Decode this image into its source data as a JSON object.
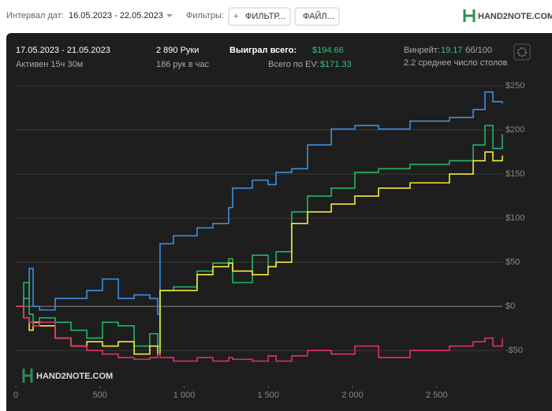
{
  "toolbar": {
    "date_label": "Интервал дат:",
    "date_range": "16.05.2023 - 22.05.2023",
    "filters_label": "Фильтры:",
    "filter_button": "ФИЛЬТР...",
    "file_button": "ФАЙЛ...",
    "logo": "HAND2NOTE.COM"
  },
  "summary": {
    "period": "17.05.2023 - 21.05.2023",
    "active": "Активен 15ч 30м",
    "hands": "2 890 Руки",
    "hands_per_hour": "186 рук в час",
    "won_label": "Выиграл всего:",
    "won_value": "$194.66",
    "ev_label": "Всего по EV:",
    "ev_value": "$171.33",
    "winrate_label": "Винрейт:",
    "winrate_value": "19.17",
    "winrate_unit": "бб/100",
    "tables": "2.2 среднее число столов"
  },
  "chart_data": {
    "type": "line",
    "watermark": "HAND2NOTE.COM",
    "x": [
      0,
      47,
      80,
      103,
      141,
      234,
      328,
      422,
      515,
      609,
      703,
      796,
      843,
      857,
      937,
      1077,
      1171,
      1265,
      1288,
      1405,
      1499,
      1546,
      1639,
      1733,
      1874,
      2014,
      2155,
      2342,
      2576,
      2717,
      2787,
      2834,
      2890
    ],
    "series": [
      {
        "color": "#3d8fe0",
        "values": [
          0,
          9,
          43,
          0,
          -4,
          9,
          9,
          18,
          31,
          9,
          13,
          9,
          -9,
          71,
          80,
          89,
          94,
          112,
          134,
          143,
          138,
          152,
          156,
          183,
          201,
          205,
          201,
          210,
          214,
          223,
          243,
          232,
          230
        ]
      },
      {
        "color": "#22b566",
        "values": [
          0,
          27,
          -9,
          -18,
          -13,
          -18,
          -27,
          -36,
          -18,
          -22,
          -45,
          -31,
          -45,
          18,
          22,
          40,
          49,
          54,
          27,
          58,
          45,
          62,
          107,
          125,
          134,
          152,
          156,
          161,
          165,
          183,
          205,
          179,
          195
        ]
      },
      {
        "color": "#f2ea3a",
        "values": [
          0,
          -13,
          -27,
          -18,
          -22,
          -36,
          -45,
          -40,
          -45,
          -40,
          -54,
          -45,
          -54,
          18,
          18,
          36,
          45,
          49,
          40,
          36,
          45,
          50,
          94,
          107,
          116,
          125,
          134,
          140,
          150,
          165,
          175,
          165,
          171
        ]
      },
      {
        "color": "#e0306a",
        "values": [
          0,
          -13,
          -18,
          -22,
          -18,
          -36,
          -45,
          -50,
          -54,
          -58,
          -60,
          -58,
          -54,
          -58,
          -62,
          -58,
          -62,
          -58,
          -60,
          -62,
          -56,
          -62,
          -56,
          -50,
          -54,
          -45,
          -58,
          -50,
          -45,
          -40,
          -36,
          -45,
          -36
        ]
      }
    ],
    "xlim": [
      0,
      2890
    ],
    "ylim": [
      -90,
      258
    ],
    "xticks": [
      0,
      500,
      {
        "value": 1000,
        "label": "1 000"
      },
      {
        "value": 1500,
        "label": "1 500"
      },
      {
        "value": 2000,
        "label": "2 000"
      },
      {
        "value": 2500,
        "label": "2 500"
      }
    ],
    "yticks": [
      {
        "value": -50,
        "label": "-$50"
      },
      {
        "value": 0,
        "label": "$0"
      },
      {
        "value": 50,
        "label": "$50"
      },
      {
        "value": 100,
        "label": "$100"
      },
      {
        "value": 150,
        "label": "$150"
      },
      {
        "value": 200,
        "label": "$200"
      },
      {
        "value": 250,
        "label": "$250"
      }
    ],
    "grid": true
  }
}
